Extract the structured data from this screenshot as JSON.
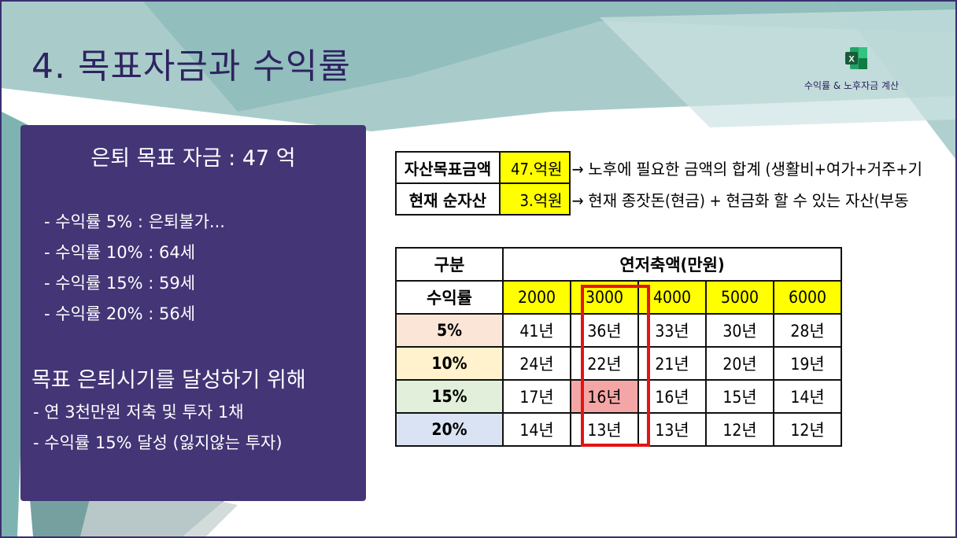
{
  "slide": {
    "title": "4. 목표자금과 수익률",
    "excel_icon": "excel-icon",
    "excel_label": "수익률 & 노후자금 계산"
  },
  "panel": {
    "heading": "은퇴 목표 자금 : 47 억",
    "rates": [
      "- 수익률 5% : 은퇴불가...",
      "- 수익률 10% : 64세",
      "- 수익률 15% : 59세",
      "- 수익률 20% : 56세"
    ],
    "goal_heading": "목표 은퇴시기를 달성하기 위해",
    "goal_items": [
      "- 연 3천만원 저축 및 투자 1채",
      "- 수익률 15% 달성 (잃지않는 투자)"
    ]
  },
  "summary": [
    {
      "label": "자산목표금액",
      "value": "47.억원",
      "desc": "→ 노후에 필요한 금액의 합계 (생활비+여가+거주+기"
    },
    {
      "label": "현재 순자산",
      "value": "3.억원",
      "desc": "→ 현재 종잣돈(현금) + 현금화 할 수 있는 자산(부동"
    }
  ],
  "table": {
    "col_header": "구분",
    "group_header": "연저축액(만원)",
    "row_header": "수익률",
    "amounts": [
      "2000",
      "3000",
      "4000",
      "5000",
      "6000"
    ],
    "rows": [
      {
        "rate": "5%",
        "years": [
          "41년",
          "36년",
          "33년",
          "30년",
          "28년"
        ]
      },
      {
        "rate": "10%",
        "years": [
          "24년",
          "22년",
          "21년",
          "20년",
          "19년"
        ]
      },
      {
        "rate": "15%",
        "years": [
          "17년",
          "16년",
          "16년",
          "15년",
          "14년"
        ]
      },
      {
        "rate": "20%",
        "years": [
          "14년",
          "13년",
          "13년",
          "12년",
          "12년"
        ]
      }
    ]
  },
  "colors": {
    "primary": "#433576",
    "title": "#2e2460",
    "yellow": "#ffff00",
    "highlight_border": "#e31414",
    "highlight_fill": "#f4a6a6"
  }
}
